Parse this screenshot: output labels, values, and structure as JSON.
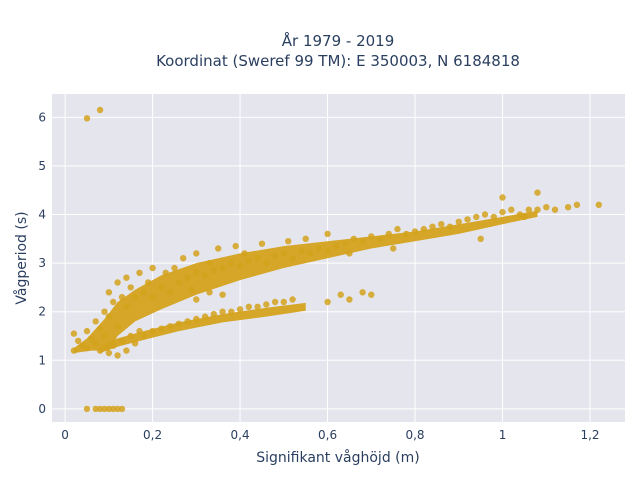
{
  "chart_data": {
    "type": "scatter",
    "title_line1": "År 1979 - 2019",
    "title_line2": "Koordinat (Sweref 99 TM): E 350003, N 6184818",
    "xlabel": "Signifikant våghöjd (m)",
    "ylabel": "Vågperiod (s)",
    "xlim": [
      -0.03,
      1.28
    ],
    "ylim": [
      -0.27,
      6.48
    ],
    "xticks": [
      {
        "value": 0,
        "label": "0"
      },
      {
        "value": 0.2,
        "label": "0,2"
      },
      {
        "value": 0.4,
        "label": "0,4"
      },
      {
        "value": 0.6,
        "label": "0,6"
      },
      {
        "value": 0.8,
        "label": "0,8"
      },
      {
        "value": 1,
        "label": "1"
      },
      {
        "value": 1.2,
        "label": "1,2"
      }
    ],
    "yticks": [
      {
        "value": 0,
        "label": "0"
      },
      {
        "value": 1,
        "label": "1"
      },
      {
        "value": 2,
        "label": "2"
      },
      {
        "value": 3,
        "label": "3"
      },
      {
        "value": 4,
        "label": "4"
      },
      {
        "value": 5,
        "label": "5"
      },
      {
        "value": 6,
        "label": "6"
      }
    ],
    "grid": true,
    "marker_color": "#d4a21c",
    "background_color": "#e5e5ee",
    "series": [
      {
        "points": [
          [
            0.05,
            5.98
          ],
          [
            0.08,
            6.15
          ],
          [
            0.05,
            0
          ],
          [
            0.07,
            0
          ],
          [
            0.08,
            0
          ],
          [
            0.09,
            0
          ],
          [
            0.1,
            0
          ],
          [
            0.11,
            0
          ],
          [
            0.12,
            0
          ],
          [
            0.13,
            0
          ],
          [
            0.02,
            1.2
          ],
          [
            0.02,
            1.55
          ],
          [
            0.03,
            1.4
          ],
          [
            0.04,
            1.3
          ],
          [
            0.05,
            1.25
          ],
          [
            0.05,
            1.6
          ],
          [
            0.06,
            1.45
          ],
          [
            0.07,
            1.35
          ],
          [
            0.07,
            1.8
          ],
          [
            0.08,
            1.2
          ],
          [
            0.08,
            1.65
          ],
          [
            0.09,
            1.5
          ],
          [
            0.09,
            2.0
          ],
          [
            0.1,
            1.15
          ],
          [
            0.1,
            1.9
          ],
          [
            0.1,
            2.4
          ],
          [
            0.11,
            1.3
          ],
          [
            0.11,
            2.2
          ],
          [
            0.12,
            1.1
          ],
          [
            0.12,
            1.7
          ],
          [
            0.12,
            2.6
          ],
          [
            0.13,
            1.4
          ],
          [
            0.13,
            2.3
          ],
          [
            0.14,
            1.2
          ],
          [
            0.14,
            2.1
          ],
          [
            0.14,
            2.7
          ],
          [
            0.15,
            1.5
          ],
          [
            0.15,
            2.5
          ],
          [
            0.16,
            1.35
          ],
          [
            0.16,
            2.3
          ],
          [
            0.17,
            1.6
          ],
          [
            0.17,
            2.8
          ],
          [
            0.18,
            1.5
          ],
          [
            0.18,
            2.4
          ],
          [
            0.19,
            2.6
          ],
          [
            0.2,
            1.6
          ],
          [
            0.2,
            2.3
          ],
          [
            0.2,
            2.9
          ],
          [
            0.22,
            1.65
          ],
          [
            0.22,
            2.5
          ],
          [
            0.23,
            2.8
          ],
          [
            0.24,
            1.7
          ],
          [
            0.24,
            2.4
          ],
          [
            0.25,
            2.9
          ],
          [
            0.26,
            1.75
          ],
          [
            0.26,
            2.6
          ],
          [
            0.27,
            3.1
          ],
          [
            0.28,
            1.8
          ],
          [
            0.28,
            2.7
          ],
          [
            0.29,
            2.45
          ],
          [
            0.3,
            1.85
          ],
          [
            0.3,
            2.8
          ],
          [
            0.3,
            3.2
          ],
          [
            0.32,
            1.9
          ],
          [
            0.32,
            2.75
          ],
          [
            0.33,
            3.0
          ],
          [
            0.34,
            1.95
          ],
          [
            0.34,
            2.85
          ],
          [
            0.35,
            3.3
          ],
          [
            0.36,
            2.0
          ],
          [
            0.36,
            2.9
          ],
          [
            0.38,
            2.0
          ],
          [
            0.38,
            3.0
          ],
          [
            0.39,
            3.35
          ],
          [
            0.4,
            2.05
          ],
          [
            0.4,
            2.95
          ],
          [
            0.41,
            3.2
          ],
          [
            0.42,
            2.1
          ],
          [
            0.42,
            3.05
          ],
          [
            0.44,
            2.1
          ],
          [
            0.44,
            3.1
          ],
          [
            0.45,
            3.4
          ],
          [
            0.46,
            2.15
          ],
          [
            0.46,
            3.0
          ],
          [
            0.48,
            2.2
          ],
          [
            0.48,
            3.15
          ],
          [
            0.5,
            2.2
          ],
          [
            0.5,
            3.2
          ],
          [
            0.51,
            3.45
          ],
          [
            0.52,
            2.25
          ],
          [
            0.52,
            3.1
          ],
          [
            0.54,
            3.25
          ],
          [
            0.55,
            3.5
          ],
          [
            0.56,
            3.2
          ],
          [
            0.58,
            3.3
          ],
          [
            0.6,
            3.25
          ],
          [
            0.6,
            3.6
          ],
          [
            0.62,
            3.35
          ],
          [
            0.64,
            3.4
          ],
          [
            0.65,
            3.2
          ],
          [
            0.66,
            3.5
          ],
          [
            0.68,
            3.45
          ],
          [
            0.7,
            3.55
          ],
          [
            0.72,
            3.5
          ],
          [
            0.74,
            3.6
          ],
          [
            0.75,
            3.3
          ],
          [
            0.76,
            3.7
          ],
          [
            0.78,
            3.6
          ],
          [
            0.8,
            3.65
          ],
          [
            0.82,
            3.7
          ],
          [
            0.84,
            3.75
          ],
          [
            0.86,
            3.8
          ],
          [
            0.88,
            3.75
          ],
          [
            0.9,
            3.85
          ],
          [
            0.92,
            3.9
          ],
          [
            0.94,
            3.95
          ],
          [
            0.95,
            3.5
          ],
          [
            0.96,
            4.0
          ],
          [
            0.98,
            3.95
          ],
          [
            1.0,
            4.05
          ],
          [
            1.0,
            4.35
          ],
          [
            1.02,
            4.1
          ],
          [
            1.04,
            4.0
          ],
          [
            1.05,
            3.95
          ],
          [
            1.06,
            4.1
          ],
          [
            1.08,
            4.45
          ],
          [
            1.08,
            4.1
          ],
          [
            1.1,
            4.15
          ],
          [
            1.12,
            4.1
          ],
          [
            1.15,
            4.15
          ],
          [
            1.17,
            4.2
          ],
          [
            1.22,
            4.2
          ],
          [
            0.3,
            2.25
          ],
          [
            0.33,
            2.4
          ],
          [
            0.36,
            2.35
          ],
          [
            0.6,
            2.2
          ],
          [
            0.63,
            2.35
          ],
          [
            0.65,
            2.25
          ],
          [
            0.68,
            2.4
          ],
          [
            0.7,
            2.35
          ]
        ]
      }
    ]
  }
}
